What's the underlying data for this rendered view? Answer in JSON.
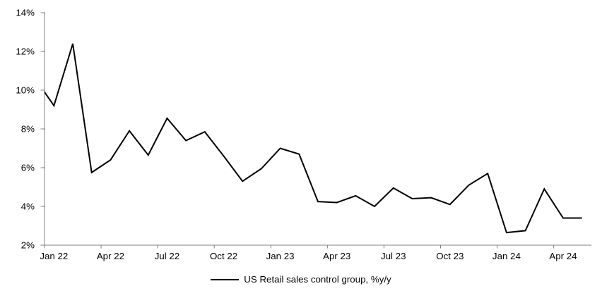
{
  "chart_data": {
    "type": "line",
    "title": "",
    "xlabel": "",
    "ylabel": "",
    "grid": false,
    "background": "#ffffff",
    "axis_color": "#808080",
    "text_color": "#000000",
    "legend_position": "bottom-center",
    "ylim": [
      2,
      14
    ],
    "y_tick_labels": [
      "2%",
      "4%",
      "6%",
      "8%",
      "10%",
      "12%",
      "14%"
    ],
    "x_tick_labels": [
      "Jan 22",
      "Apr 22",
      "Jul 22",
      "Oct 22",
      "Jan 23",
      "Apr 23",
      "Jul 23",
      "Oct 23",
      "Jan 24",
      "Apr 24"
    ],
    "x": [
      "Jan 22",
      "Feb 22",
      "Mar 22",
      "Apr 22",
      "May 22",
      "Jun 22",
      "Jul 22",
      "Aug 22",
      "Sep 22",
      "Oct 22",
      "Nov 22",
      "Dec 22",
      "Jan 23",
      "Feb 23",
      "Mar 23",
      "Apr 23",
      "May 23",
      "Jun 23",
      "Jul 23",
      "Aug 23",
      "Sep 23",
      "Oct 23",
      "Nov 23",
      "Dec 23",
      "Jan 24",
      "Feb 24",
      "Mar 24",
      "Apr 24",
      "May 24"
    ],
    "series": [
      {
        "name": "US Retail sales control group, %y/y",
        "color": "#000000",
        "values": [
          9.2,
          12.4,
          5.75,
          6.4,
          7.9,
          6.65,
          8.55,
          7.4,
          7.85,
          6.6,
          5.3,
          5.95,
          7.0,
          6.7,
          4.25,
          4.2,
          4.55,
          4.0,
          4.95,
          4.4,
          4.45,
          4.1,
          5.1,
          5.7,
          2.65,
          2.75,
          4.9,
          3.4,
          3.4
        ]
      }
    ],
    "pre_point": {
      "label": "Dec 21",
      "value": 10.6,
      "clipped_at_left_axis": true
    }
  }
}
